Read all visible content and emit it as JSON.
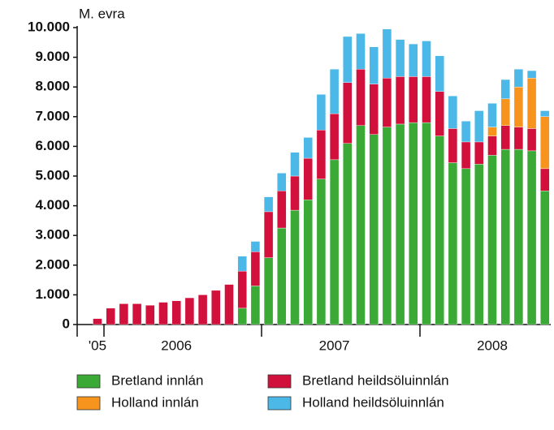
{
  "chart_data": {
    "type": "stacked_bar",
    "y_label": "M. evra",
    "categories": [
      "'05",
      null,
      null,
      null,
      null,
      null,
      "2006",
      null,
      null,
      null,
      null,
      null,
      null,
      null,
      null,
      null,
      null,
      null,
      "2007",
      null,
      null,
      null,
      null,
      null,
      null,
      null,
      null,
      null,
      null,
      null,
      "2008",
      null,
      null,
      null,
      null
    ],
    "ylim": [
      0,
      10000
    ],
    "yticks": [
      0,
      {
        "value": 1000,
        "label": "1.000"
      },
      {
        "value": 2000,
        "label": "2.000"
      },
      {
        "value": 3000,
        "label": "3.000"
      },
      {
        "value": 4000,
        "label": "4.000"
      },
      {
        "value": 5000,
        "label": "5.000"
      },
      {
        "value": 6000,
        "label": "6.000"
      },
      {
        "value": 7000,
        "label": "7.000"
      },
      {
        "value": 8000,
        "label": "8.000"
      },
      {
        "value": 9000,
        "label": "9.000"
      },
      {
        "value": 10000,
        "label": "10.000"
      }
    ],
    "legend": "bottom",
    "series": [
      {
        "name": "Bretland innlán",
        "color": "#3aa935",
        "values": [
          0,
          0,
          0,
          0,
          0,
          0,
          0,
          0,
          0,
          0,
          0,
          550,
          1300,
          2250,
          3250,
          3850,
          4200,
          4900,
          5550,
          6100,
          6700,
          6400,
          6650,
          6750,
          6800,
          6800,
          6350,
          5450,
          5250,
          5400,
          5700,
          5900,
          5900,
          5850,
          4500
        ]
      },
      {
        "name": "Bretland heildsöluinnlán",
        "color": "#d2103c",
        "values": [
          200,
          550,
          700,
          700,
          650,
          750,
          800,
          900,
          1000,
          1150,
          1350,
          1250,
          1150,
          1550,
          1250,
          1150,
          1400,
          1650,
          1550,
          2050,
          1900,
          1700,
          1650,
          1600,
          1550,
          1550,
          1500,
          1150,
          900,
          750,
          650,
          800,
          750,
          750,
          750
        ]
      },
      {
        "name": "Holland innlán",
        "color": "#f7941d",
        "values": [
          0,
          0,
          0,
          0,
          0,
          0,
          0,
          0,
          0,
          0,
          0,
          0,
          0,
          0,
          0,
          0,
          0,
          0,
          0,
          0,
          0,
          0,
          0,
          0,
          0,
          0,
          0,
          0,
          0,
          0,
          300,
          900,
          1350,
          1700,
          1750
        ]
      },
      {
        "name": "Holland heildsöluinnlán",
        "color": "#4cb8e8",
        "values": [
          0,
          0,
          0,
          0,
          0,
          0,
          0,
          0,
          0,
          0,
          0,
          500,
          350,
          500,
          600,
          800,
          700,
          1200,
          1500,
          1550,
          1200,
          1250,
          1650,
          1250,
          1100,
          1200,
          1200,
          1100,
          700,
          1050,
          800,
          650,
          600,
          250,
          200
        ]
      }
    ]
  }
}
